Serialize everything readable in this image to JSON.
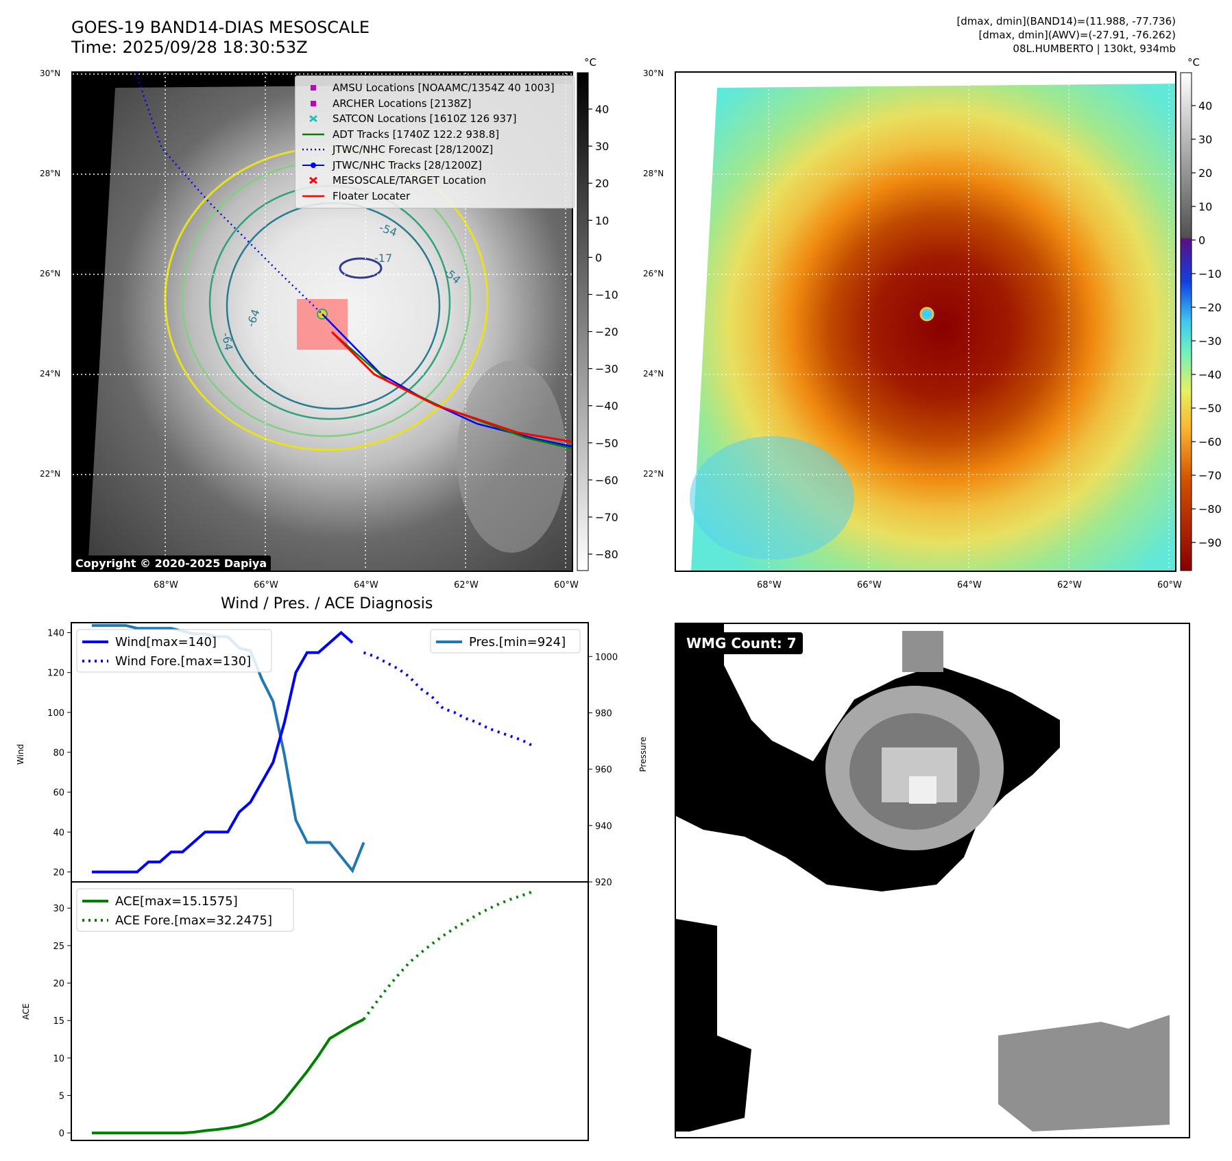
{
  "header": {
    "title_line1": "GOES-19 BAND14-DIAS MESOSCALE",
    "title_line2": "Time: 2025/09/28 18:30:53Z",
    "info_line1": "[dmax, dmin](BAND14)=(11.988, -77.736)",
    "info_line2": "[dmax, dmin](AWV)=(-27.91, -76.262)",
    "info_line3": "08L.HUMBERTO | 130kt, 934mb"
  },
  "map": {
    "lat_labels": [
      "30°N",
      "28°N",
      "26°N",
      "24°N",
      "22°N"
    ],
    "lon_labels": [
      "68°W",
      "66°W",
      "64°W",
      "62°W",
      "60°W"
    ],
    "contour_labels": [
      "-64",
      "-64",
      "-54",
      "-54",
      "-17"
    ],
    "copyright": "Copyright © 2020-2025 Dapiya",
    "colorbar_unit": "°C",
    "left_colorbar_ticks": [
      "40",
      "30",
      "20",
      "10",
      "0",
      "−10",
      "−20",
      "−30",
      "−40",
      "−50",
      "−60",
      "−70",
      "−80"
    ],
    "right_colorbar_ticks": [
      "40",
      "30",
      "20",
      "10",
      "0",
      "−10",
      "−20",
      "−30",
      "−40",
      "−50",
      "−60",
      "−70",
      "−80",
      "−90"
    ],
    "legend": [
      {
        "label": "AMSU Locations [NOAAMC/1354Z 40 1003]",
        "icon": "square-marker",
        "color": "#c000c0"
      },
      {
        "label": "ARCHER Locations [2138Z]",
        "icon": "square-marker",
        "color": "#c000c0"
      },
      {
        "label": "SATCON Locations [1610Z 126 937]",
        "icon": "x-marker",
        "color": "#20c0c0"
      },
      {
        "label": "ADT Tracks [1740Z 122.2 938.8]",
        "icon": "solid-line",
        "color": "#008000"
      },
      {
        "label": "JTWC/NHC Forecast [28/1200Z]",
        "icon": "dotted-line",
        "color": "#0000ff"
      },
      {
        "label": "JTWC/NHC Tracks [28/1200Z]",
        "icon": "dot-line",
        "color": "#0000ff"
      },
      {
        "label": "MESOSCALE/TARGET Location",
        "icon": "x-marker",
        "color": "#ff0000"
      },
      {
        "label": "Floater Locater",
        "icon": "solid-line",
        "color": "#ff0000"
      }
    ]
  },
  "diagnosis": {
    "title": "Wind / Pres. / ACE Diagnosis",
    "wind_legend": "Wind[max=140]",
    "wind_fore_legend": "Wind Fore.[max=130]",
    "pres_legend": "Pres.[min=924]",
    "ace_legend": "ACE[max=15.1575]",
    "ace_fore_legend": "ACE Fore.[max=32.2475]",
    "wind_axis_label": "Wind",
    "pres_axis_label": "Pressure",
    "ace_axis_label": "ACE"
  },
  "wmg": {
    "label": "WMG Count: 7"
  },
  "chart_data": [
    {
      "type": "line",
      "title": "Wind / Pres. / ACE Diagnosis",
      "ylabel": "Wind",
      "ylim": [
        15,
        145
      ],
      "yticks": [
        20,
        40,
        60,
        80,
        100,
        120,
        140
      ],
      "y2label": "Pressure",
      "y2lim": [
        920,
        1012
      ],
      "y2ticks": [
        920,
        940,
        960,
        980,
        1000
      ],
      "series": [
        {
          "name": "Wind[max=140]",
          "color": "#0000ff",
          "style": "solid",
          "axis": "left",
          "x": [
            0,
            1,
            2,
            3,
            4,
            5,
            6,
            7,
            8,
            9,
            10,
            11,
            12,
            13,
            14,
            15,
            16,
            17,
            18,
            19,
            20,
            21,
            22,
            23
          ],
          "values": [
            20,
            20,
            20,
            20,
            20,
            25,
            25,
            30,
            30,
            35,
            40,
            40,
            40,
            50,
            55,
            65,
            75,
            95,
            120,
            130,
            130,
            135,
            140,
            135
          ]
        },
        {
          "name": "Wind Fore.[max=130]",
          "color": "#0000ff",
          "style": "dotted",
          "axis": "left",
          "x": [
            24,
            25,
            26,
            27,
            28,
            29,
            30,
            31,
            32,
            33,
            34,
            35,
            36,
            37,
            38,
            39
          ],
          "values": [
            130,
            128,
            125,
            122,
            118,
            112,
            108,
            102,
            100,
            97,
            95,
            92,
            90,
            88,
            86,
            83
          ]
        },
        {
          "name": "Pres.[min=924]",
          "color": "#1f77b4",
          "style": "solid",
          "axis": "right",
          "x": [
            0,
            1,
            2,
            3,
            4,
            5,
            6,
            7,
            8,
            9,
            10,
            11,
            12,
            13,
            14,
            15,
            16,
            17,
            18,
            19,
            20,
            21,
            22,
            23,
            24
          ],
          "values": [
            1011,
            1011,
            1011,
            1011,
            1010,
            1010,
            1010,
            1010,
            1009,
            1008,
            1008,
            1007,
            1007,
            1003,
            1002,
            992,
            984,
            965,
            942,
            934,
            934,
            934,
            929,
            924,
            934
          ]
        }
      ]
    },
    {
      "type": "line",
      "ylabel": "ACE",
      "ylim": [
        -1,
        33.5
      ],
      "yticks": [
        0,
        5,
        10,
        15,
        20,
        25,
        30
      ],
      "series": [
        {
          "name": "ACE[max=15.1575]",
          "color": "#008000",
          "style": "solid",
          "x": [
            0,
            1,
            2,
            3,
            4,
            5,
            6,
            7,
            8,
            9,
            10,
            11,
            12,
            13,
            14,
            15,
            16,
            17,
            18,
            19,
            20,
            21,
            22,
            23,
            24
          ],
          "values": [
            0,
            0,
            0,
            0,
            0,
            0,
            0,
            0,
            0,
            0.1,
            0.3,
            0.45,
            0.65,
            0.9,
            1.3,
            1.9,
            2.8,
            4.4,
            6.3,
            8.2,
            10.3,
            12.6,
            13.5,
            14.4,
            15.16
          ]
        },
        {
          "name": "ACE Fore.[max=32.2475]",
          "color": "#008000",
          "style": "dotted",
          "x": [
            24,
            25,
            26,
            27,
            28,
            29,
            30,
            31,
            32,
            33,
            34,
            35,
            36,
            37,
            38,
            39
          ],
          "values": [
            15.16,
            17.2,
            19.2,
            21.0,
            22.7,
            24.0,
            25.2,
            26.3,
            27.3,
            28.2,
            29.1,
            29.9,
            30.6,
            31.2,
            31.7,
            32.25
          ]
        }
      ]
    }
  ]
}
